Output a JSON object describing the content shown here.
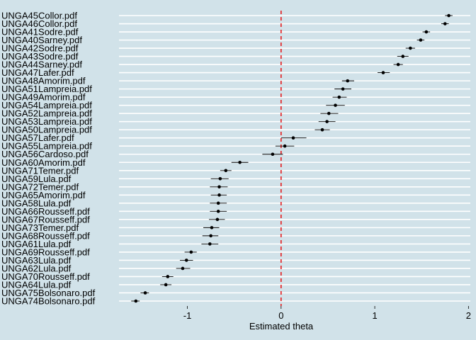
{
  "chart_data": {
    "type": "scatter",
    "subtype": "dot-and-whisker",
    "xlabel": "Estimated theta",
    "xticks": [
      -1,
      0,
      1,
      2
    ],
    "xlim": [
      -1.73,
      2.02
    ],
    "reference_line": {
      "x": 0,
      "color": "#e41a1c",
      "style": "dashed"
    },
    "grid": "horizontal",
    "colors": {
      "background": "#d1e2e9",
      "gridline": "#ffffff",
      "point": "#000000"
    },
    "points": [
      {
        "label": "UNGA45Collor.pdf",
        "value": 1.79,
        "lo": 1.75,
        "hi": 1.83
      },
      {
        "label": "UNGA46Collor.pdf",
        "value": 1.75,
        "lo": 1.71,
        "hi": 1.79
      },
      {
        "label": "UNGA41Sodre.pdf",
        "value": 1.55,
        "lo": 1.51,
        "hi": 1.59
      },
      {
        "label": "UNGA40Sarney.pdf",
        "value": 1.49,
        "lo": 1.45,
        "hi": 1.53
      },
      {
        "label": "UNGA42Sodre.pdf",
        "value": 1.38,
        "lo": 1.33,
        "hi": 1.43
      },
      {
        "label": "UNGA43Sodre.pdf",
        "value": 1.3,
        "lo": 1.24,
        "hi": 1.36
      },
      {
        "label": "UNGA44Sarney.pdf",
        "value": 1.25,
        "lo": 1.2,
        "hi": 1.3
      },
      {
        "label": "UNGA47Lafer.pdf",
        "value": 1.09,
        "lo": 1.03,
        "hi": 1.16
      },
      {
        "label": "UNGA48Amorim.pdf",
        "value": 0.71,
        "lo": 0.65,
        "hi": 0.78
      },
      {
        "label": "UNGA51Lampreia.pdf",
        "value": 0.66,
        "lo": 0.57,
        "hi": 0.75
      },
      {
        "label": "UNGA49Amorim.pdf",
        "value": 0.62,
        "lo": 0.55,
        "hi": 0.7
      },
      {
        "label": "UNGA54Lampreia.pdf",
        "value": 0.58,
        "lo": 0.48,
        "hi": 0.68
      },
      {
        "label": "UNGA52Lampreia.pdf",
        "value": 0.51,
        "lo": 0.42,
        "hi": 0.61
      },
      {
        "label": "UNGA53Lampreia.pdf",
        "value": 0.49,
        "lo": 0.4,
        "hi": 0.58
      },
      {
        "label": "UNGA50Lampreia.pdf",
        "value": 0.44,
        "lo": 0.36,
        "hi": 0.52
      },
      {
        "label": "UNGA57Lafer.pdf",
        "value": 0.13,
        "lo": 0.0,
        "hi": 0.27
      },
      {
        "label": "UNGA55Lampreia.pdf",
        "value": 0.04,
        "lo": -0.06,
        "hi": 0.14
      },
      {
        "label": "UNGA56Cardoso.pdf",
        "value": -0.09,
        "lo": -0.2,
        "hi": 0.02
      },
      {
        "label": "UNGA60Amorim.pdf",
        "value": -0.44,
        "lo": -0.53,
        "hi": -0.35
      },
      {
        "label": "UNGA71Temer.pdf",
        "value": -0.59,
        "lo": -0.65,
        "hi": -0.53
      },
      {
        "label": "UNGA59Lula.pdf",
        "value": -0.65,
        "lo": -0.75,
        "hi": -0.56
      },
      {
        "label": "UNGA72Temer.pdf",
        "value": -0.66,
        "lo": -0.76,
        "hi": -0.57
      },
      {
        "label": "UNGA65Amorim.pdf",
        "value": -0.66,
        "lo": -0.75,
        "hi": -0.58
      },
      {
        "label": "UNGA58Lula.pdf",
        "value": -0.67,
        "lo": -0.76,
        "hi": -0.58
      },
      {
        "label": "UNGA66Rousseff.pdf",
        "value": -0.67,
        "lo": -0.76,
        "hi": -0.58
      },
      {
        "label": "UNGA67Rousseff.pdf",
        "value": -0.68,
        "lo": -0.77,
        "hi": -0.6
      },
      {
        "label": "UNGA73Temer.pdf",
        "value": -0.74,
        "lo": -0.83,
        "hi": -0.66
      },
      {
        "label": "UNGA68Rousseff.pdf",
        "value": -0.75,
        "lo": -0.84,
        "hi": -0.67
      },
      {
        "label": "UNGA61Lula.pdf",
        "value": -0.76,
        "lo": -0.85,
        "hi": -0.67
      },
      {
        "label": "UNGA69Rousseff.pdf",
        "value": -0.96,
        "lo": -1.03,
        "hi": -0.9
      },
      {
        "label": "UNGA63Lula.pdf",
        "value": -1.01,
        "lo": -1.08,
        "hi": -0.94
      },
      {
        "label": "UNGA62Lula.pdf",
        "value": -1.05,
        "lo": -1.12,
        "hi": -0.97
      },
      {
        "label": "UNGA70Rousseff.pdf",
        "value": -1.21,
        "lo": -1.27,
        "hi": -1.15
      },
      {
        "label": "UNGA64Lula.pdf",
        "value": -1.23,
        "lo": -1.29,
        "hi": -1.17
      },
      {
        "label": "UNGA75Bolsonaro.pdf",
        "value": -1.45,
        "lo": -1.5,
        "hi": -1.41
      },
      {
        "label": "UNGA74Bolsonaro.pdf",
        "value": -1.55,
        "lo": -1.6,
        "hi": -1.51
      }
    ]
  }
}
